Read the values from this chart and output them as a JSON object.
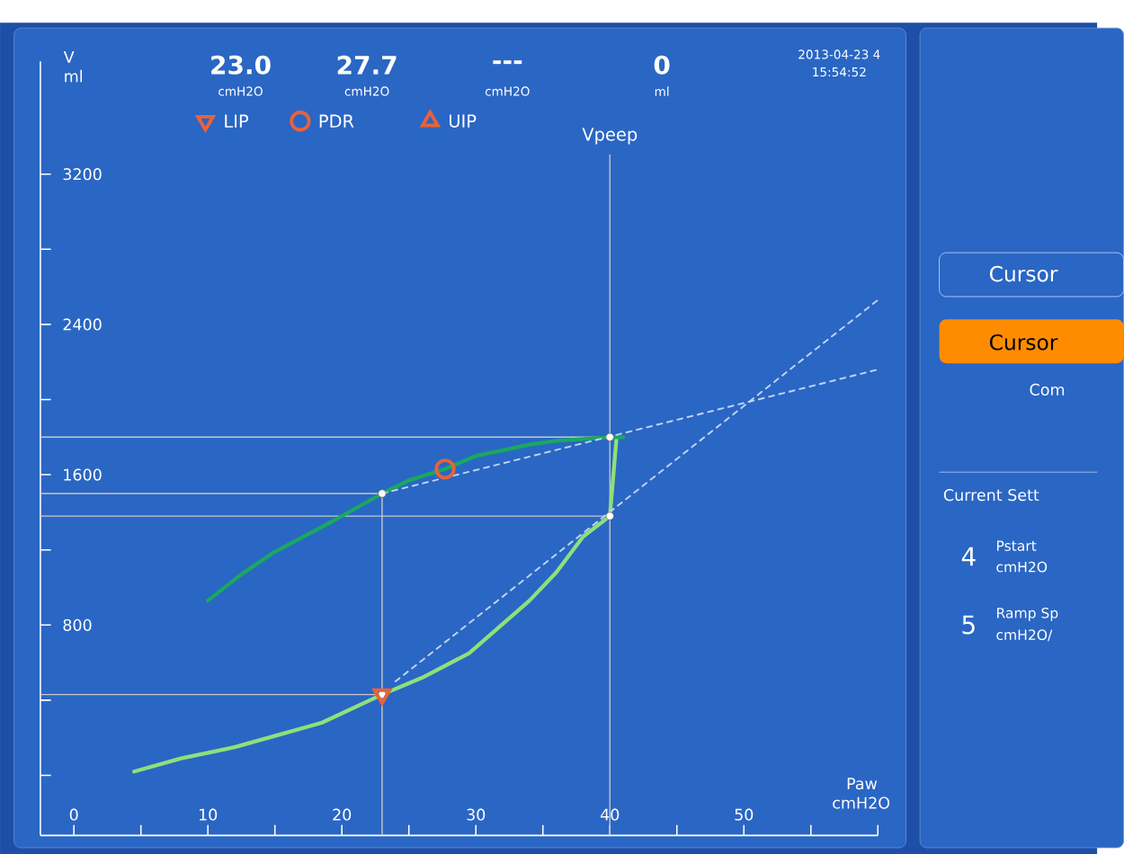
{
  "chart_data": {
    "type": "line",
    "xlabel": "Paw cmH2O",
    "ylabel": "V ml",
    "xlim": [
      -2.5,
      60
    ],
    "ylim": [
      -320,
      3800
    ],
    "xticks": [
      0,
      {
        "value": 5,
        "label": null
      },
      10,
      {
        "value": 15,
        "label": null
      },
      20,
      {
        "value": 25,
        "label": null
      },
      30,
      {
        "value": 35,
        "label": null
      },
      40,
      {
        "value": 45,
        "label": null
      },
      50,
      {
        "value": 55,
        "label": null
      },
      {
        "value": 60,
        "label": null
      }
    ],
    "yticks": [
      {
        "value": 0,
        "label": null
      },
      {
        "value": 400,
        "label": null
      },
      800,
      {
        "value": 1200,
        "label": null
      },
      1600,
      {
        "value": 2000,
        "label": null
      },
      2400,
      {
        "value": 2800,
        "label": null
      },
      3200
    ],
    "grid": false,
    "legend": "top",
    "series": [
      {
        "type": "line",
        "color": "#8ee07a",
        "marker": "none",
        "line_style": "solid",
        "x": [
          4.5,
          8,
          12,
          15,
          18.5,
          23,
          26,
          29.5,
          34,
          36,
          38,
          40,
          40.5
        ],
        "values": [
          20,
          90,
          150,
          210,
          280,
          430,
          520,
          650,
          930,
          1080,
          1270,
          1380,
          1800
        ]
      },
      {
        "type": "line",
        "color": "#1aa860",
        "marker": "none",
        "line_style": "solid",
        "x": [
          41,
          40,
          36,
          34,
          30,
          27.7,
          25,
          23,
          19.5,
          15,
          12.5,
          10
        ],
        "values": [
          1800,
          1800,
          1780,
          1760,
          1700,
          1630,
          1570,
          1500,
          1360,
          1190,
          1070,
          930
        ]
      },
      {
        "type": "line",
        "color": "#c0d4f0",
        "marker": "none",
        "line_style": "dashed",
        "x": [
          23,
          60
        ],
        "values": [
          1500,
          2160
        ]
      },
      {
        "type": "line",
        "color": "#c0d4f0",
        "marker": "none",
        "line_style": "dashed",
        "x": [
          24,
          60
        ],
        "values": [
          500,
          2530
        ]
      },
      {
        "type": "scatter",
        "color": "#ffffff",
        "marker": "circle",
        "x": [
          23,
          40,
          40,
          23
        ],
        "values": [
          1500,
          1800,
          1380,
          430
        ]
      },
      {
        "type": "scatter",
        "name": "LIP",
        "color": "#e8623a",
        "marker": "triangle-down",
        "x": [
          23
        ],
        "values": [
          430
        ]
      },
      {
        "type": "scatter",
        "name": "PDR",
        "color": "#e8623a",
        "marker": "circle",
        "x": [
          27.7
        ],
        "values": [
          1630
        ]
      },
      {
        "type": "scatter",
        "name": "UIP",
        "color": "#e8623a",
        "marker": "triangle"
      }
    ],
    "ref_lines": [
      {
        "axis": "x",
        "value": 40,
        "label": "Vpeep",
        "color": "#c8c8c8",
        "line_style": "solid"
      },
      {
        "axis": "x",
        "value": 23,
        "color": "#c8c8c8",
        "line_style": "solid"
      },
      {
        "axis": "y",
        "value": 1800,
        "color": "#c8c8c8",
        "line_style": "solid"
      },
      {
        "axis": "y",
        "value": 1500,
        "color": "#c8c8c8",
        "line_style": "solid"
      },
      {
        "axis": "y",
        "value": 1380,
        "color": "#c8c8c8",
        "line_style": "solid"
      },
      {
        "axis": "y",
        "value": 430,
        "color": "#c8c8c8",
        "line_style": "solid"
      }
    ],
    "annotations": [
      "23.0",
      "cmH2O",
      "27.7",
      "cmH2O",
      "---",
      "cmH2O",
      "0",
      "ml",
      "2013-04-23 4",
      "15:54:52",
      "Cursor",
      "Cursor",
      "Com",
      "Current Sett",
      "4",
      "Pstart",
      "cmH2O",
      "5",
      "Ramp Sp",
      "cmH2O/"
    ]
  }
}
